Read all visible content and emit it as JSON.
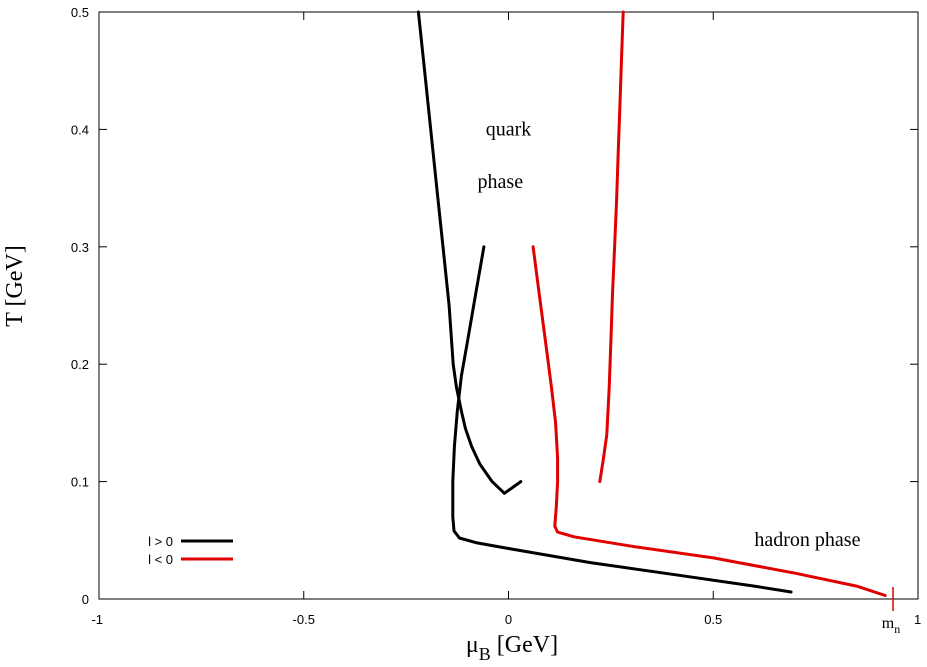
{
  "chart_data": {
    "type": "line",
    "title": "",
    "xlabel": {
      "main": "μ",
      "sub": "B",
      "unit": " [GeV]"
    },
    "ylabel": "T [GeV]",
    "xlim": [
      -1,
      1
    ],
    "ylim": [
      0,
      0.5
    ],
    "xticks": [
      -1,
      -0.5,
      0,
      0.5,
      1
    ],
    "xtick_labels": [
      "-1",
      "-0.5",
      "0",
      "0.5",
      "1"
    ],
    "yticks": [
      0,
      0.1,
      0.2,
      0.3,
      0.4,
      0.5
    ],
    "ytick_labels": [
      "0",
      "0.1",
      "0.2",
      "0.3",
      "0.4",
      "0.5"
    ],
    "grid": false,
    "legend": {
      "position": "bottom-left",
      "entries": [
        {
          "label": "l > 0",
          "color": "#000000"
        },
        {
          "label": "l < 0",
          "color": "#e00000"
        }
      ]
    },
    "annotations": [
      {
        "text": "quark",
        "x": 0.0,
        "y": 0.395
      },
      {
        "text": "phase",
        "x": -0.02,
        "y": 0.35
      },
      {
        "text": "hadron phase",
        "x": 0.73,
        "y": 0.045
      }
    ],
    "marker": {
      "label_main": "m",
      "label_sub": "n",
      "x": 0.939,
      "color": "#e00000"
    },
    "series": [
      {
        "legend": "l > 0",
        "color": "#000000",
        "curves": [
          {
            "x": [
              -0.22,
              -0.205,
              -0.19,
              -0.175,
              -0.16,
              -0.145,
              -0.135,
              -0.127,
              -0.121,
              -0.115,
              -0.105,
              -0.09,
              -0.07,
              -0.04,
              -0.01,
              0.03
            ],
            "y": [
              0.5,
              0.45,
              0.4,
              0.35,
              0.3,
              0.25,
              0.2,
              0.18,
              0.17,
              0.16,
              0.145,
              0.13,
              0.115,
              0.1,
              0.09,
              0.1
            ]
          },
          {
            "x": [
              -0.06,
              -0.08,
              -0.1,
              -0.115,
              -0.125,
              -0.132,
              -0.136,
              -0.136,
              -0.133,
              -0.12,
              -0.08,
              0.0,
              0.2,
              0.4,
              0.6,
              0.69
            ],
            "y": [
              0.3,
              0.26,
              0.22,
              0.19,
              0.16,
              0.13,
              0.1,
              0.07,
              0.058,
              0.052,
              0.048,
              0.043,
              0.031,
              0.021,
              0.011,
              0.006
            ]
          }
        ]
      },
      {
        "legend": "l < 0",
        "color": "#e00000",
        "curves": [
          {
            "x": [
              0.28,
              0.276,
              0.272,
              0.268,
              0.264,
              0.259,
              0.254,
              0.25,
              0.246,
              0.24,
              0.232,
              0.223
            ],
            "y": [
              0.5,
              0.46,
              0.42,
              0.38,
              0.34,
              0.3,
              0.26,
              0.22,
              0.18,
              0.14,
              0.12,
              0.1
            ]
          },
          {
            "x": [
              0.06,
              0.075,
              0.09,
              0.105,
              0.115,
              0.12,
              0.12,
              0.117,
              0.113,
              0.12,
              0.16,
              0.3,
              0.5,
              0.7,
              0.85,
              0.92
            ],
            "y": [
              0.3,
              0.26,
              0.22,
              0.18,
              0.15,
              0.12,
              0.1,
              0.08,
              0.062,
              0.057,
              0.053,
              0.045,
              0.035,
              0.022,
              0.011,
              0.003
            ]
          }
        ]
      }
    ]
  }
}
